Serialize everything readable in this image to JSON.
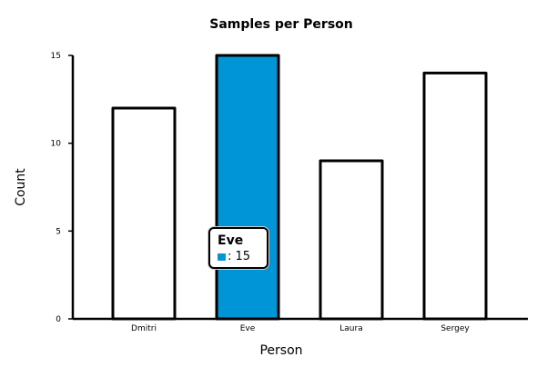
{
  "chart_data": {
    "type": "bar",
    "title": "Samples per Person",
    "xlabel": "Person",
    "ylabel": "Count",
    "categories": [
      "Dmitri",
      "Eve",
      "Laura",
      "Sergey"
    ],
    "values": [
      12,
      15,
      9,
      14
    ],
    "ylim": [
      0,
      15
    ],
    "yticks": [
      "0",
      "5",
      "10",
      "15"
    ],
    "highlight_index": 1,
    "colors": {
      "bar_fill": "#ffffff",
      "highlight_fill": "#0095d6",
      "stroke": "#000000"
    }
  },
  "tooltip": {
    "title": "Eve",
    "value_text": ": 15"
  }
}
